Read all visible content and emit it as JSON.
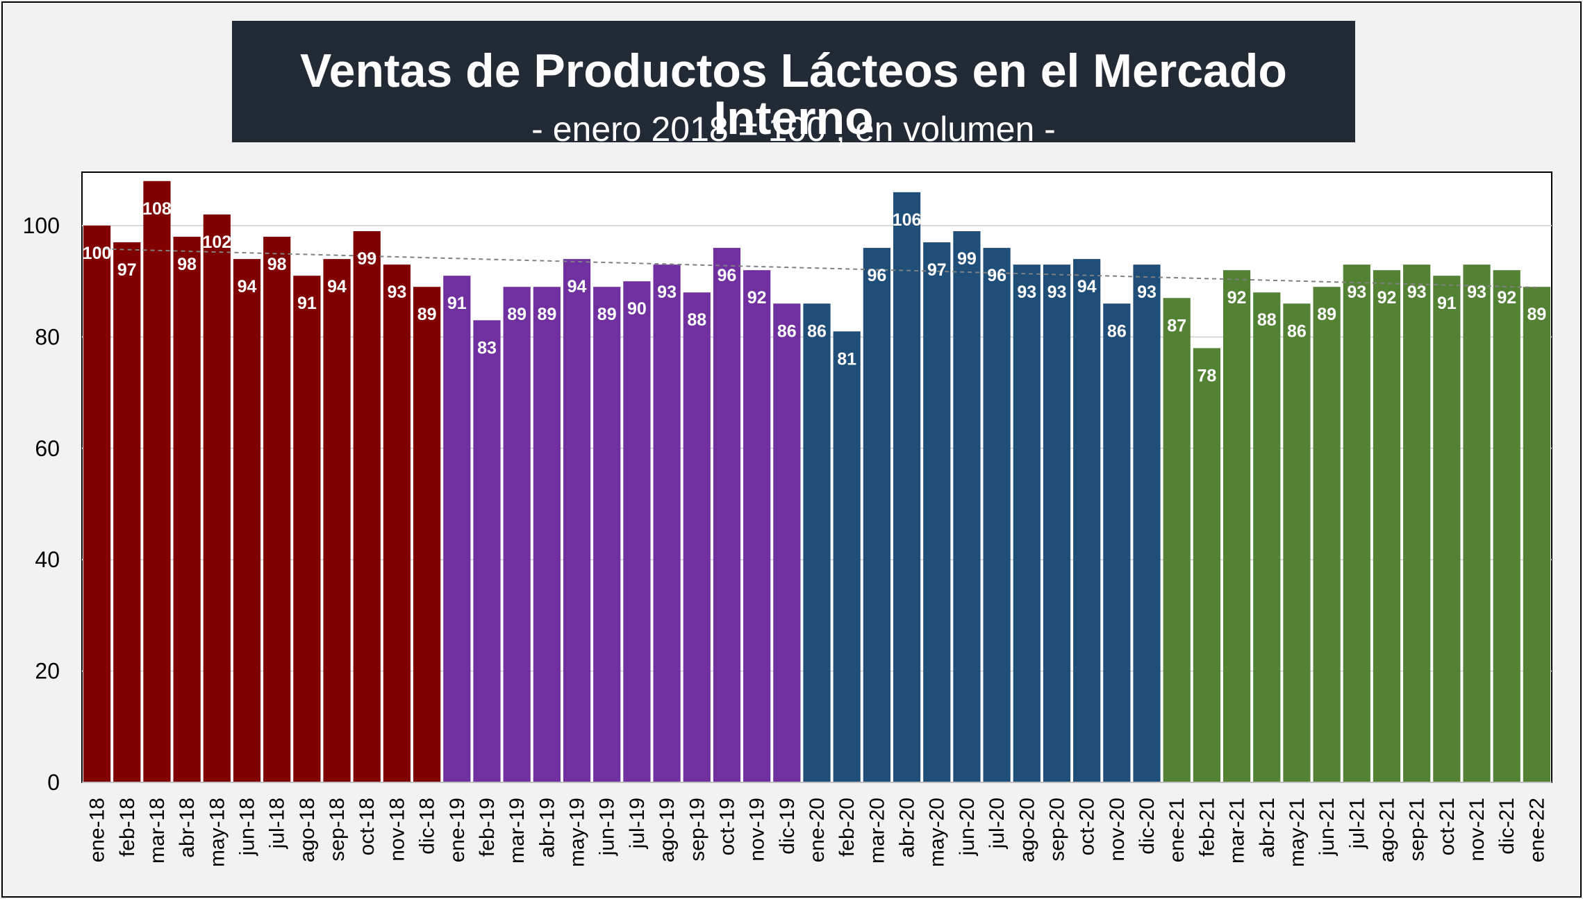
{
  "chart_data": {
    "type": "bar",
    "title": "Ventas de Productos Lácteos en el Mercado Interno",
    "subtitle": "- enero 2018 = 100 , en volumen -",
    "xlabel": "",
    "ylabel": "",
    "ylim": [
      0,
      110
    ],
    "yticks": [
      "0",
      "20",
      "40",
      "60",
      "80",
      "100"
    ],
    "grid": true,
    "legend": "none",
    "trendline": true,
    "categories": [
      "ene-18",
      "feb-18",
      "mar-18",
      "abr-18",
      "may-18",
      "jun-18",
      "jul-18",
      "ago-18",
      "sep-18",
      "oct-18",
      "nov-18",
      "dic-18",
      "ene-19",
      "feb-19",
      "mar-19",
      "abr-19",
      "may-19",
      "jun-19",
      "jul-19",
      "ago-19",
      "sep-19",
      "oct-19",
      "nov-19",
      "dic-19",
      "ene-20",
      "feb-20",
      "mar-20",
      "abr-20",
      "may-20",
      "jun-20",
      "jul-20",
      "ago-20",
      "sep-20",
      "oct-20",
      "nov-20",
      "dic-20",
      "ene-21",
      "feb-21",
      "mar-21",
      "abr-21",
      "may-21",
      "jun-21",
      "jul-21",
      "ago-21",
      "sep-21",
      "oct-21",
      "nov-21",
      "dic-21",
      "ene-22"
    ],
    "values": [
      100,
      97,
      108,
      98,
      102,
      94,
      98,
      91,
      94,
      99,
      93,
      89,
      91,
      83,
      89,
      89,
      94,
      89,
      90,
      93,
      88,
      96,
      92,
      86,
      86,
      81,
      96,
      106,
      97,
      99,
      96,
      93,
      93,
      94,
      86,
      93,
      87,
      78,
      92,
      88,
      86,
      89,
      93,
      92,
      93,
      91,
      93,
      92,
      89
    ],
    "labels": [
      "100",
      "97",
      "108",
      "98",
      "102",
      "94",
      "98",
      "91",
      "94",
      "99",
      "93",
      "89",
      "91",
      "83",
      "89",
      "89",
      "94",
      "89",
      "90",
      "93",
      "88",
      "96",
      "92",
      "86",
      "86",
      "81",
      "96",
      "106",
      "97",
      "99",
      "96",
      "93",
      "93",
      "94",
      "86",
      "93",
      "87",
      "78",
      "92",
      "88",
      "86",
      "89",
      "93",
      "92",
      "93",
      "91",
      "93",
      "92",
      "89"
    ],
    "year_colors": {
      "2018": "#800000",
      "2019": "#7030a0",
      "2020": "#1f4e79",
      "2021": "#548235",
      "2022": "#548235"
    }
  }
}
